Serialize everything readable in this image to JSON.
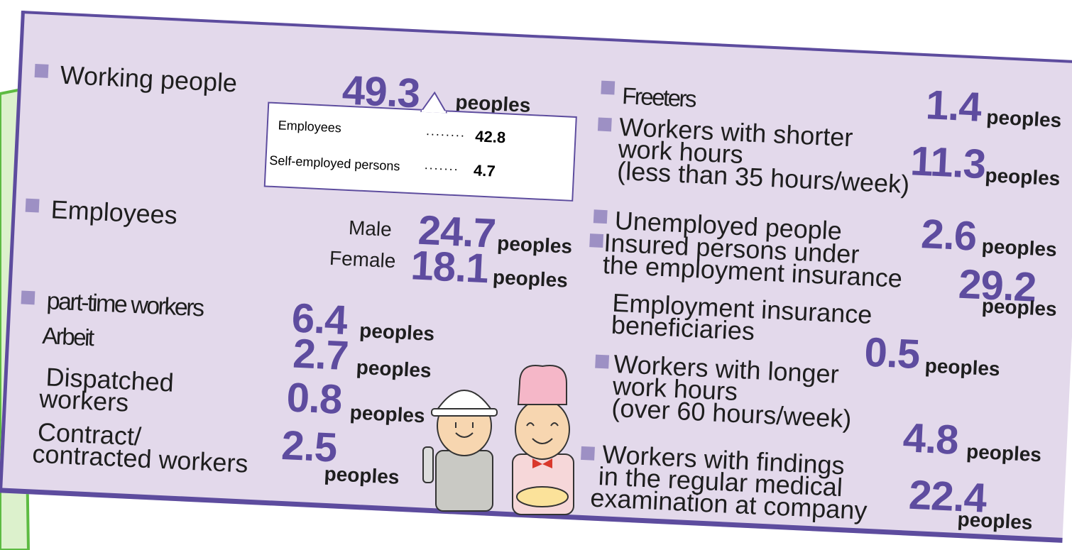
{
  "working_people": {
    "label": "Working people",
    "value": 49.3,
    "unit": "peoples",
    "breakdown": [
      {
        "label": "Employees",
        "value": 42.8
      },
      {
        "label": "Self-employed persons",
        "value": 4.7
      }
    ]
  },
  "employees": {
    "label": "Employees",
    "rows": [
      {
        "label": "Male",
        "value": 24.7,
        "unit": "peoples"
      },
      {
        "label": "Female",
        "value": 18.1,
        "unit": "peoples"
      }
    ]
  },
  "part_time": {
    "label": "part-time workers",
    "value": 6.4,
    "unit": "peoples"
  },
  "non_regular": [
    {
      "label": [
        "Arbeit"
      ],
      "value": 2.7,
      "unit": "peoples"
    },
    {
      "label": [
        "Dispatched",
        "workers"
      ],
      "value": 0.8,
      "unit": "peoples"
    },
    {
      "label": [
        "Contract/",
        "contracted workers"
      ],
      "value": 2.5,
      "unit": "peoples"
    }
  ],
  "right": [
    {
      "label": [
        "Freeters"
      ],
      "value": 1.4,
      "unit": "peoples"
    },
    {
      "label": [
        "Workers with shorter",
        "work hours",
        "(less than 35 hours/week)"
      ],
      "value": 11.3,
      "unit": "peoples"
    },
    {
      "label": [
        "Unemployed people"
      ],
      "value": 2.6,
      "unit": "peoples"
    },
    {
      "label": [
        "Insured persons under",
        "the employment insurance"
      ],
      "value": 29.2,
      "unit": "peoples"
    },
    {
      "label": [
        "Employment insurance",
        "beneficiaries"
      ],
      "value": 0.5,
      "unit": "peoples"
    },
    {
      "label": [
        "Workers with longer",
        "work hours",
        "(over 60 hours/week)"
      ],
      "value": 4.8,
      "unit": "peoples"
    },
    {
      "label": [
        "Workers with findings",
        "in the regular medical",
        "examination at company"
      ],
      "value": 22.4,
      "unit": "peoples"
    }
  ]
}
